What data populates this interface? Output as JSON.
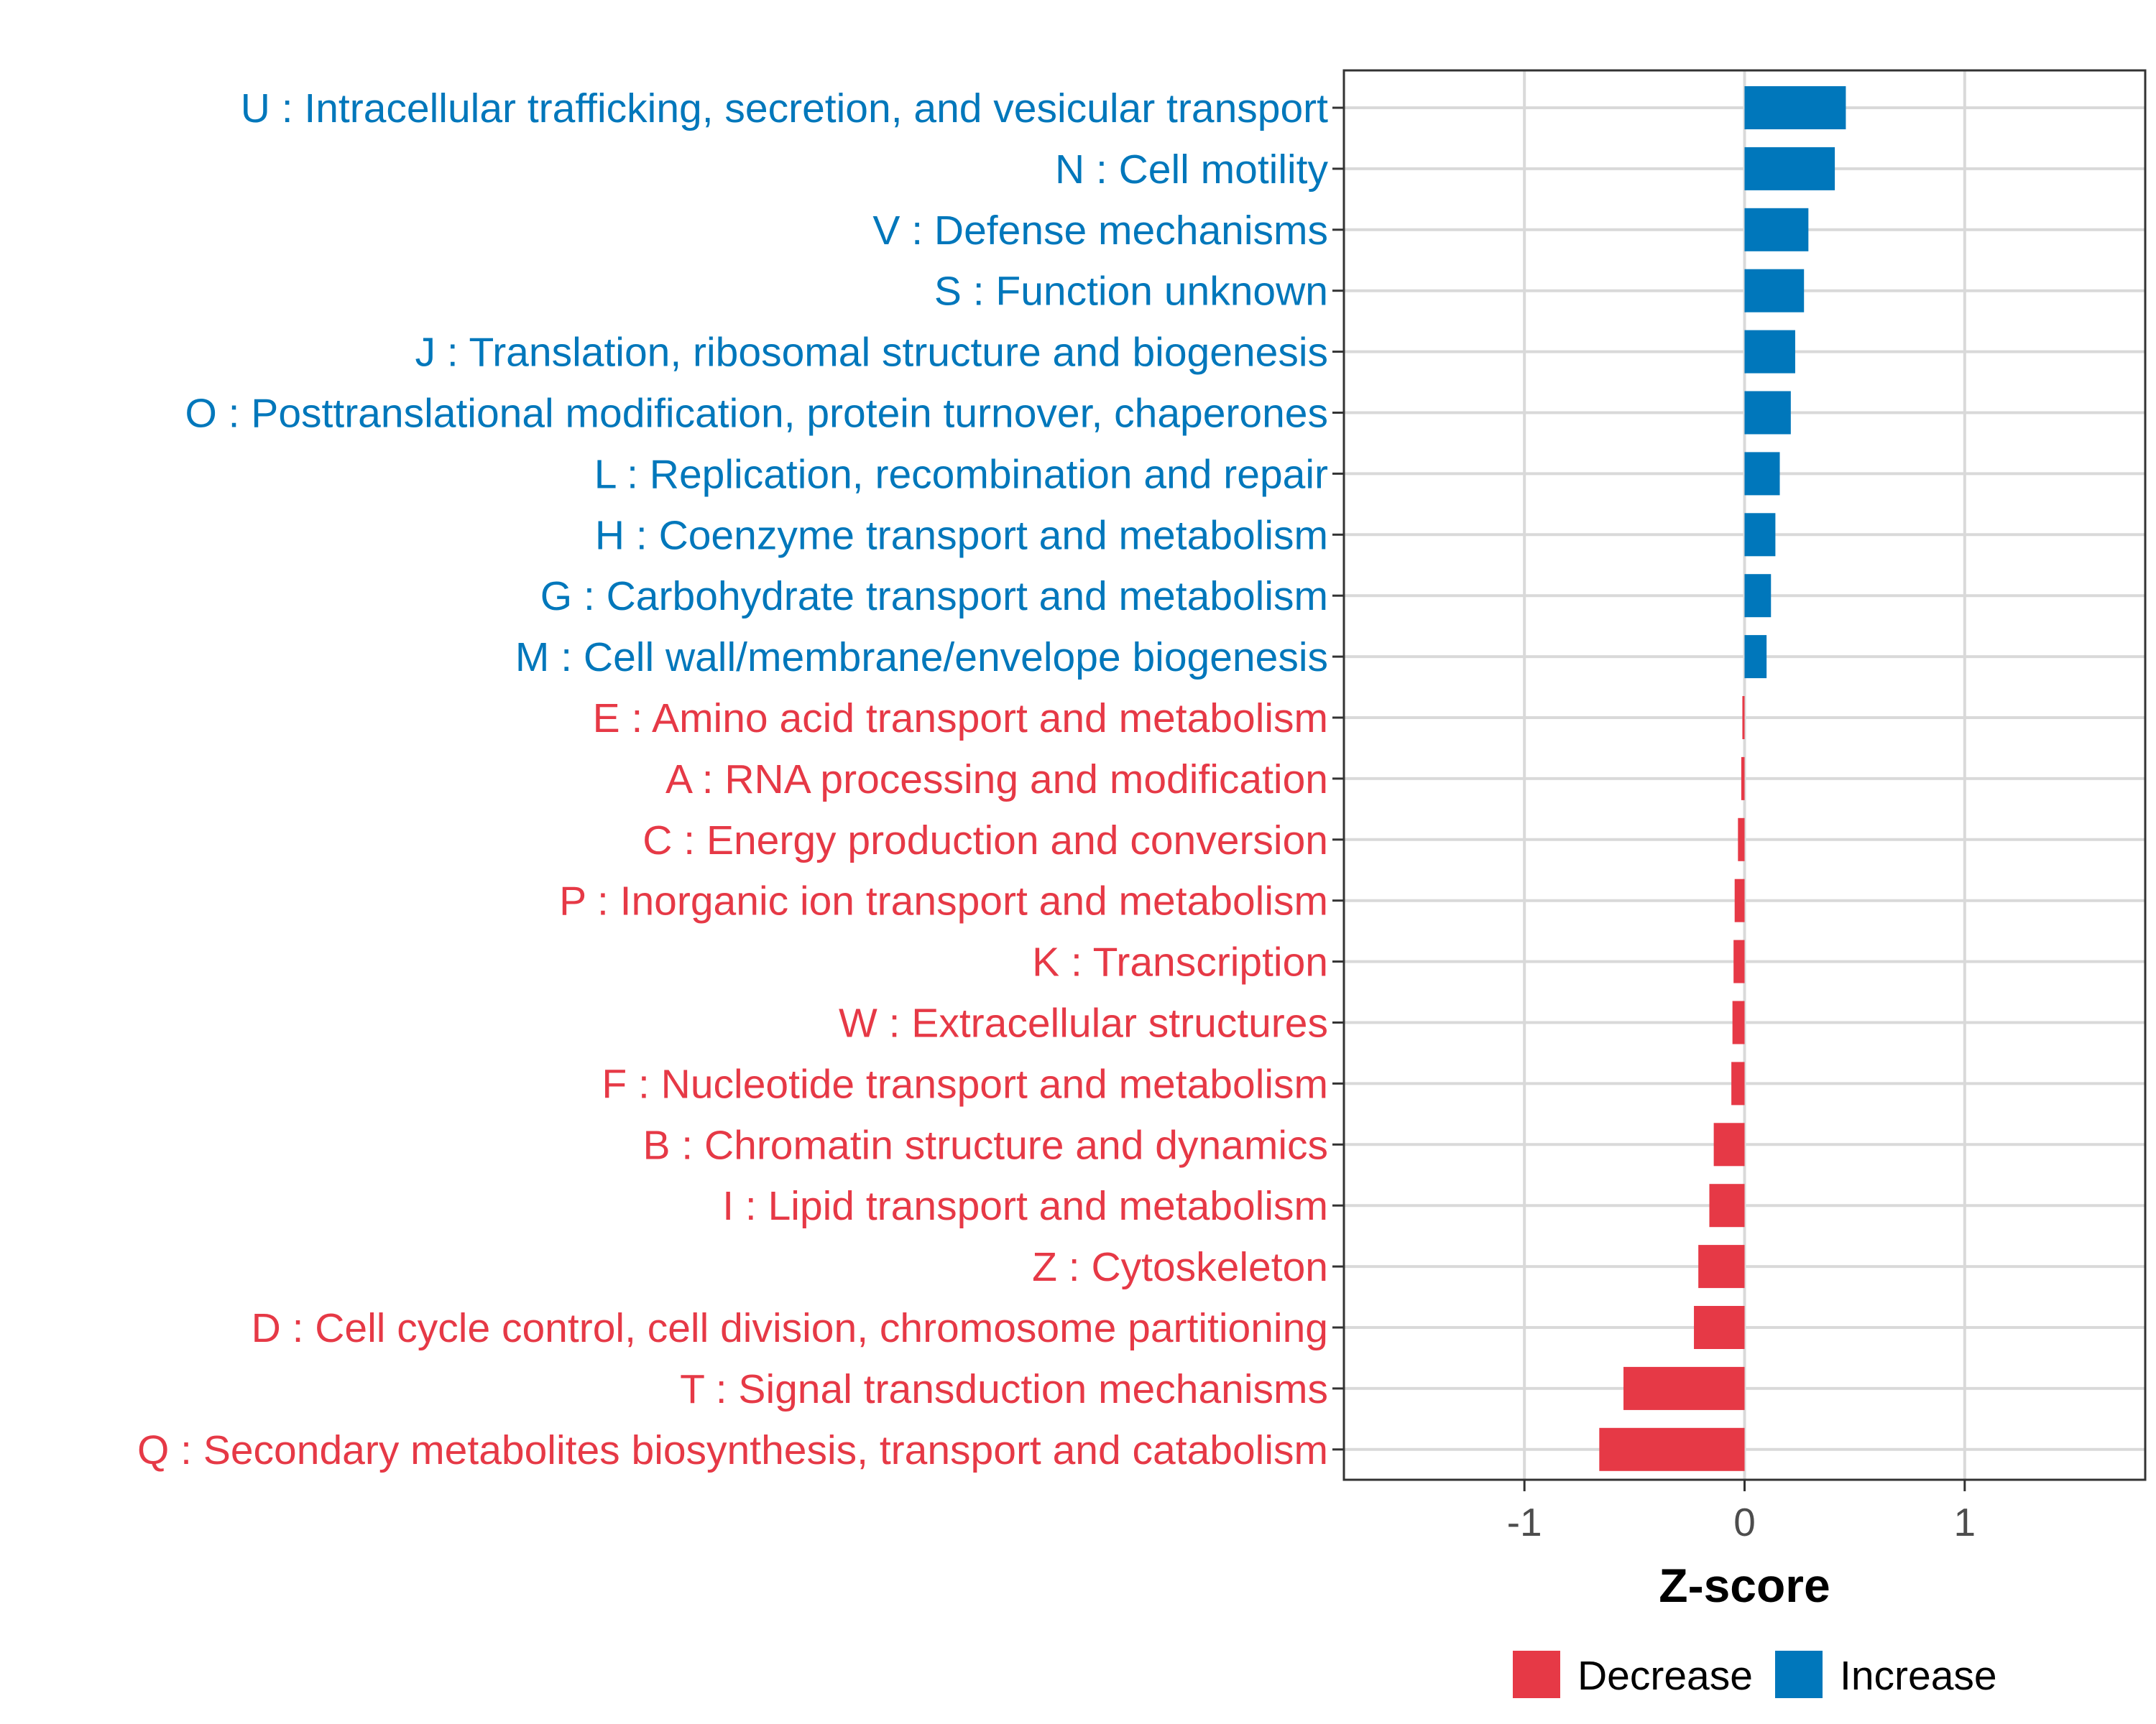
{
  "colors": {
    "increase": "#0077BB",
    "decrease": "#E63946",
    "grid": "#d9d9d9",
    "panel_border": "#333333",
    "tick_text": "#4d4d4d"
  },
  "chart_data": {
    "type": "bar",
    "orientation": "horizontal",
    "title": "",
    "xlabel": "Z-score",
    "ylabel": "",
    "xlim": [
      -1.82,
      1.82
    ],
    "x_ticks": [
      -1,
      0,
      1
    ],
    "x_tick_labels": [
      "-1",
      "0",
      "1"
    ],
    "grid": true,
    "legend_position": "bottom",
    "legend": [
      {
        "name": "Decrease",
        "color": "#E63946"
      },
      {
        "name": "Increase",
        "color": "#0077BB"
      }
    ],
    "categories": [
      "U : Intracellular trafficking, secretion, and vesicular transport",
      "N : Cell motility",
      "V : Defense mechanisms",
      "S : Function unknown",
      "J : Translation, ribosomal structure and biogenesis",
      "O : Posttranslational modification, protein turnover, chaperones",
      "L : Replication, recombination and repair",
      "H : Coenzyme transport and metabolism",
      "G : Carbohydrate transport and metabolism",
      "M : Cell wall/membrane/envelope biogenesis",
      "E : Amino acid transport and metabolism",
      "A : RNA processing and modification",
      "C : Energy production and conversion",
      "P : Inorganic ion transport and metabolism",
      "K : Transcription",
      "W : Extracellular structures",
      "F : Nucleotide transport and metabolism",
      "B : Chromatin structure and dynamics",
      "I : Lipid transport and metabolism",
      "Z : Cytoskeleton",
      "D : Cell cycle control, cell division, chromosome partitioning",
      "T : Signal transduction mechanisms",
      "Q : Secondary metabolites biosynthesis, transport and catabolism"
    ],
    "values": [
      0.46,
      0.41,
      0.29,
      0.27,
      0.23,
      0.21,
      0.16,
      0.14,
      0.12,
      0.1,
      -0.01,
      -0.015,
      -0.03,
      -0.045,
      -0.05,
      -0.055,
      -0.06,
      -0.14,
      -0.16,
      -0.21,
      -0.23,
      -0.55,
      -0.66
    ],
    "groups": [
      "Increase",
      "Increase",
      "Increase",
      "Increase",
      "Increase",
      "Increase",
      "Increase",
      "Increase",
      "Increase",
      "Increase",
      "Decrease",
      "Decrease",
      "Decrease",
      "Decrease",
      "Decrease",
      "Decrease",
      "Decrease",
      "Decrease",
      "Decrease",
      "Decrease",
      "Decrease",
      "Decrease",
      "Decrease"
    ]
  }
}
